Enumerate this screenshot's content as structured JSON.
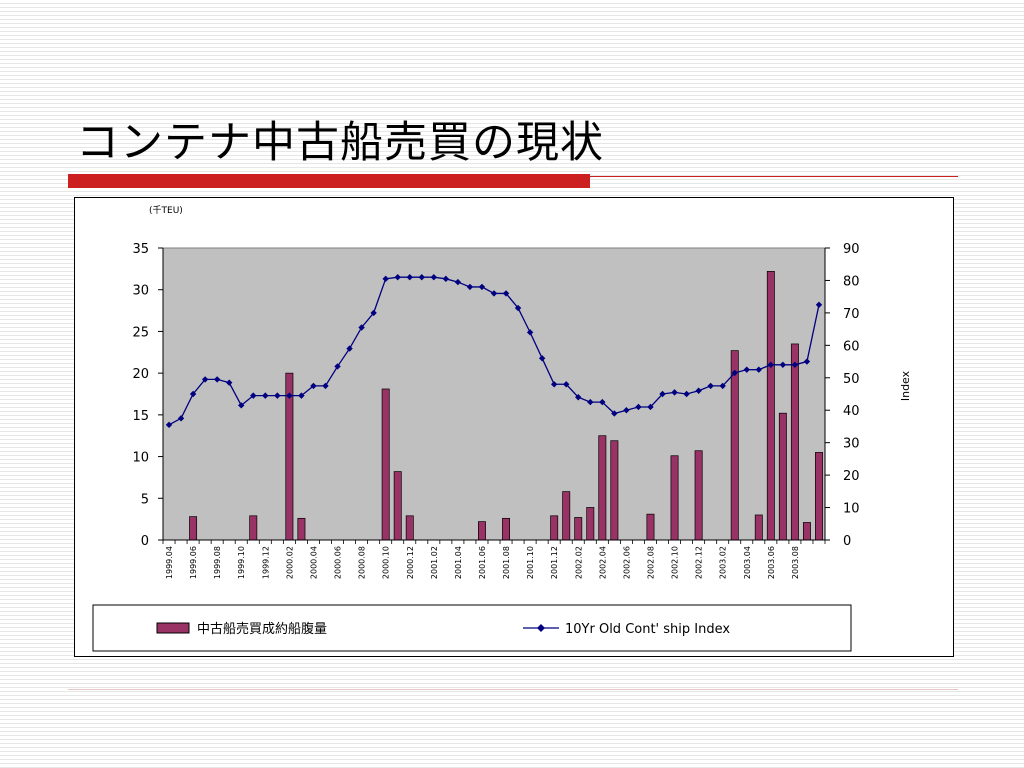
{
  "slide": {
    "title": "コンテナ中古船売買の現状"
  },
  "chart_data": {
    "type": "bar",
    "y_unit_label": "(千TEU)",
    "xlabel": "",
    "ylabel": "",
    "y2label": "Index",
    "ylim": [
      0,
      35
    ],
    "yticks": [
      0,
      5,
      10,
      15,
      20,
      25,
      30,
      35
    ],
    "y2lim": [
      0,
      90
    ],
    "y2ticks": [
      0,
      10,
      20,
      30,
      40,
      50,
      60,
      70,
      80,
      90
    ],
    "plot_background": "#c0c0c0",
    "ticks": [
      {
        "index": 0,
        "label": "1999.04"
      },
      {
        "index": 2,
        "label": "1999.06"
      },
      {
        "index": 4,
        "label": "1999.08"
      },
      {
        "index": 6,
        "label": "1999.10"
      },
      {
        "index": 8,
        "label": "1999.12"
      },
      {
        "index": 10,
        "label": "2000.02"
      },
      {
        "index": 12,
        "label": "2000.04"
      },
      {
        "index": 14,
        "label": "2000.06"
      },
      {
        "index": 16,
        "label": "2000.08"
      },
      {
        "index": 18,
        "label": "2000.10"
      },
      {
        "index": 20,
        "label": "2000.12"
      },
      {
        "index": 22,
        "label": "2001.02"
      },
      {
        "index": 24,
        "label": "2001.04"
      },
      {
        "index": 26,
        "label": "2001.06"
      },
      {
        "index": 28,
        "label": "2001.08"
      },
      {
        "index": 30,
        "label": "2001.10"
      },
      {
        "index": 32,
        "label": "2001.12"
      },
      {
        "index": 34,
        "label": "2002.02"
      },
      {
        "index": 36,
        "label": "2002.04"
      },
      {
        "index": 38,
        "label": "2002.06"
      },
      {
        "index": 40,
        "label": "2002.08"
      },
      {
        "index": 42,
        "label": "2002.10"
      },
      {
        "index": 44,
        "label": "2002.12"
      },
      {
        "index": 46,
        "label": "2003.02"
      },
      {
        "index": 48,
        "label": "2003.04"
      },
      {
        "index": 50,
        "label": "2003.06"
      },
      {
        "index": 52,
        "label": "2003.08"
      }
    ],
    "series": [
      {
        "name": "中古船売買成約船腹量",
        "type": "bar",
        "axis": "left",
        "color": "#993366",
        "values": [
          0,
          0,
          2.8,
          0,
          0,
          0,
          0,
          2.9,
          0,
          0,
          20.0,
          2.6,
          0,
          0,
          0,
          0,
          0,
          0,
          18.1,
          8.2,
          2.9,
          0,
          0,
          0,
          0,
          0,
          2.2,
          0,
          2.6,
          0,
          0,
          0,
          2.9,
          5.8,
          2.7,
          3.9,
          12.5,
          11.9,
          0,
          0,
          3.1,
          0,
          10.1,
          0,
          10.7,
          0,
          0,
          22.7,
          0,
          3.0,
          32.2,
          15.2,
          23.5,
          2.1,
          10.5
        ]
      },
      {
        "name": "10Yr Old Cont' ship Index",
        "type": "line",
        "axis": "right",
        "color": "#000080",
        "values": [
          35.5,
          37.5,
          45.0,
          49.5,
          49.5,
          48.5,
          41.5,
          44.5,
          44.5,
          44.5,
          44.5,
          44.5,
          47.5,
          47.5,
          53.5,
          59.0,
          65.5,
          70.0,
          80.5,
          81.0,
          81.0,
          81.0,
          81.0,
          80.5,
          79.5,
          78.0,
          78.0,
          76.0,
          76.0,
          71.5,
          64.0,
          56.0,
          48.0,
          48.0,
          44.0,
          42.5,
          42.5,
          39.0,
          40.0,
          41.0,
          41.0,
          45.0,
          45.5,
          45.0,
          46.0,
          47.5,
          47.5,
          51.5,
          52.5,
          52.5,
          54.0,
          54.0,
          54.0,
          55.0,
          72.5
        ]
      }
    ],
    "legend": {
      "placement": "bottom",
      "items": [
        {
          "label": "中古船売買成約船腹量",
          "marker": "bar-swatch",
          "color": "#993366"
        },
        {
          "label": "10Yr Old Cont' ship Index",
          "marker": "line-diamond",
          "color": "#000080"
        }
      ]
    }
  }
}
